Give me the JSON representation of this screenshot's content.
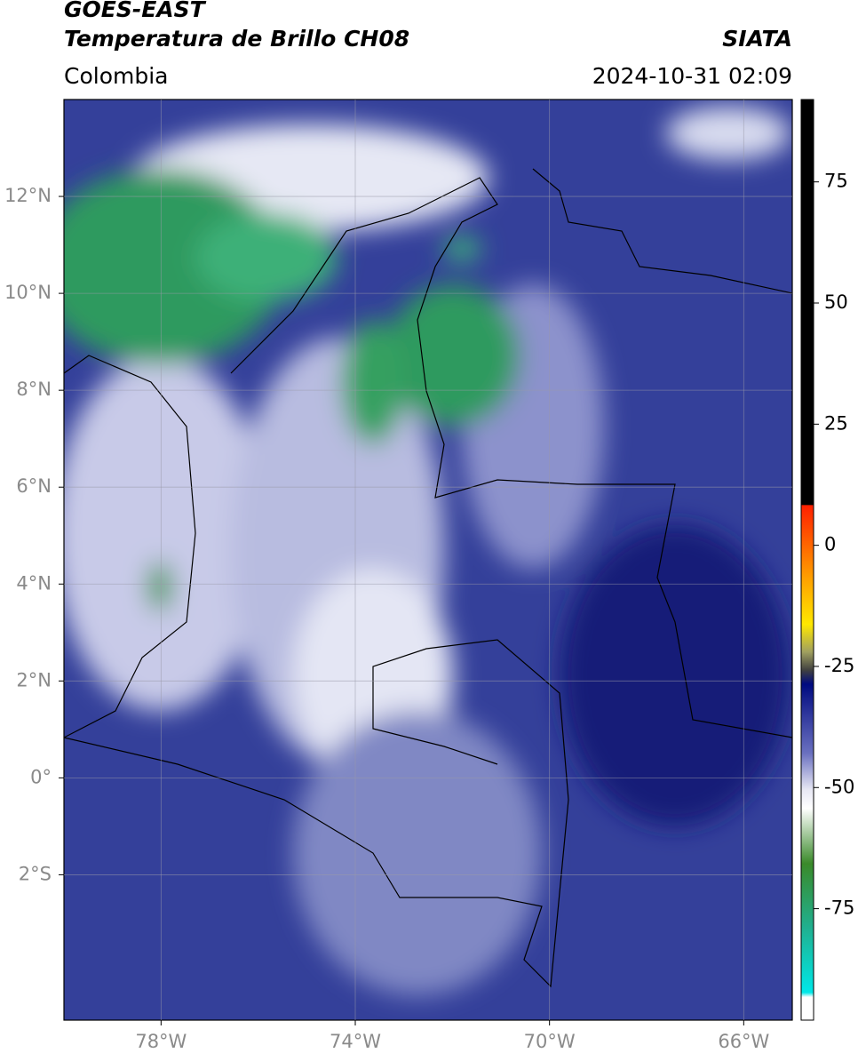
{
  "header": {
    "title": "GOES-EAST",
    "subtitle": "Temperatura de Brillo CH08",
    "source": "SIATA",
    "region": "Colombia",
    "datetime": "2024-10-31 02:09"
  },
  "map": {
    "xlim": [
      -80,
      -65
    ],
    "ylim": [
      -5,
      14
    ],
    "yticks": [
      {
        "value": 12,
        "label": "12°N"
      },
      {
        "value": 10,
        "label": "10°N"
      },
      {
        "value": 8,
        "label": "8°N"
      },
      {
        "value": 6,
        "label": "6°N"
      },
      {
        "value": 4,
        "label": "4°N"
      },
      {
        "value": 2,
        "label": "2°N"
      },
      {
        "value": 0,
        "label": "0°"
      },
      {
        "value": -2,
        "label": "2°S"
      }
    ],
    "xticks": [
      {
        "value": -78,
        "label": "78°W"
      },
      {
        "value": -74,
        "label": "74°W"
      },
      {
        "value": -70,
        "label": "70°W"
      },
      {
        "value": -66,
        "label": "66°W"
      }
    ]
  },
  "colorbar": {
    "lim": [
      -98,
      92
    ],
    "ticks": [
      75,
      50,
      25,
      0,
      -25,
      -50,
      -75
    ]
  }
}
